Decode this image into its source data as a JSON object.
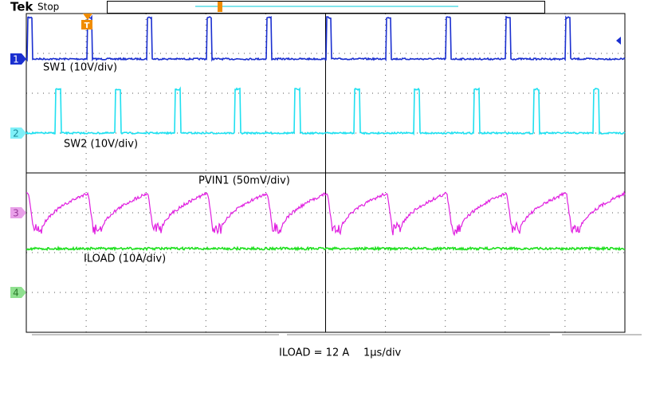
{
  "header": {
    "brand": "Tek",
    "status": "Stop",
    "trigger": "T"
  },
  "channels": [
    {
      "marker": "1",
      "label": "SW1 (10V/div)"
    },
    {
      "marker": "2",
      "label": "SW2 (10V/div)"
    },
    {
      "marker": "3",
      "label": "PVIN1 (50mV/div)"
    },
    {
      "marker": "4",
      "label": "ILOAD (10A/div)"
    }
  ],
  "caption": {
    "condition": "ILOAD = 12 A",
    "timebase": "1μs/div"
  }
}
